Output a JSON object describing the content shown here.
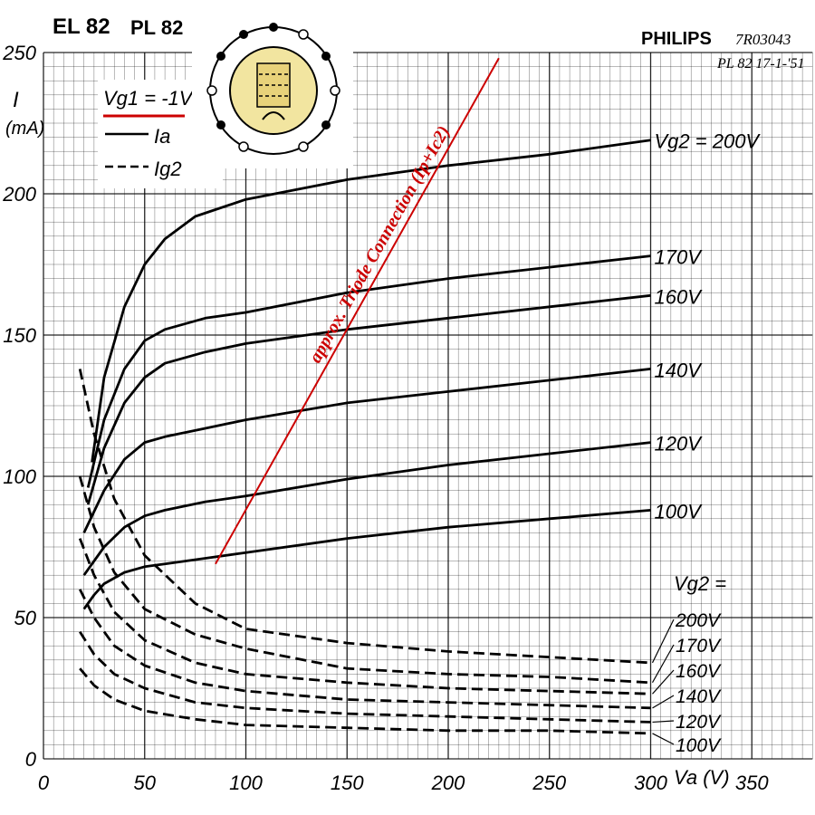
{
  "header": {
    "tube_title": "EL 82",
    "tube_title_2": "PL 82",
    "brand": "PHILIPS",
    "ref_code": "7R03043",
    "ref_note": "PL 82 17-1-'51"
  },
  "legend": {
    "grid_label": "Vg1 = -1V",
    "ia_label": "Ia",
    "ig2_label": "Ig2"
  },
  "triode_note": "approx. Triode Connection (Ip+Ic2)",
  "vg2_prefix": "Vg2 =",
  "chart_data": {
    "type": "line",
    "xlabel": "Va (V)",
    "ylabel": "I (mA)",
    "xlim": [
      0,
      380
    ],
    "ylim": [
      0,
      250
    ],
    "x_ticks": [
      0,
      50,
      100,
      150,
      200,
      250,
      300,
      350
    ],
    "y_ticks": [
      0,
      50,
      100,
      150,
      200,
      250
    ],
    "grid": true,
    "legend_placement": "top-left",
    "plate_series": [
      {
        "name": "200V",
        "label": "Vg2 = 200V",
        "style": "solid",
        "points": [
          [
            24,
            105
          ],
          [
            30,
            135
          ],
          [
            40,
            160
          ],
          [
            50,
            175
          ],
          [
            60,
            184
          ],
          [
            75,
            192
          ],
          [
            100,
            198
          ],
          [
            150,
            205
          ],
          [
            200,
            210
          ],
          [
            250,
            214
          ],
          [
            300,
            219
          ]
        ]
      },
      {
        "name": "170V",
        "label": "170V",
        "style": "solid",
        "points": [
          [
            22,
            96
          ],
          [
            30,
            120
          ],
          [
            40,
            138
          ],
          [
            50,
            148
          ],
          [
            60,
            152
          ],
          [
            80,
            156
          ],
          [
            100,
            158
          ],
          [
            150,
            165
          ],
          [
            200,
            170
          ],
          [
            250,
            174
          ],
          [
            300,
            178
          ]
        ]
      },
      {
        "name": "160V",
        "label": "160V",
        "style": "solid",
        "points": [
          [
            22,
            90
          ],
          [
            30,
            110
          ],
          [
            40,
            126
          ],
          [
            50,
            135
          ],
          [
            60,
            140
          ],
          [
            80,
            144
          ],
          [
            100,
            147
          ],
          [
            150,
            152
          ],
          [
            200,
            156
          ],
          [
            250,
            160
          ],
          [
            300,
            164
          ]
        ]
      },
      {
        "name": "140V",
        "label": "140V",
        "style": "solid",
        "points": [
          [
            20,
            80
          ],
          [
            30,
            95
          ],
          [
            40,
            106
          ],
          [
            50,
            112
          ],
          [
            60,
            114
          ],
          [
            80,
            117
          ],
          [
            100,
            120
          ],
          [
            150,
            126
          ],
          [
            200,
            130
          ],
          [
            250,
            134
          ],
          [
            300,
            138
          ]
        ]
      },
      {
        "name": "120V",
        "label": "120V",
        "style": "solid",
        "points": [
          [
            20,
            65
          ],
          [
            30,
            75
          ],
          [
            40,
            82
          ],
          [
            50,
            86
          ],
          [
            60,
            88
          ],
          [
            80,
            91
          ],
          [
            100,
            93
          ],
          [
            150,
            99
          ],
          [
            200,
            104
          ],
          [
            250,
            108
          ],
          [
            300,
            112
          ]
        ]
      },
      {
        "name": "100V",
        "label": "100V",
        "style": "solid",
        "points": [
          [
            20,
            53
          ],
          [
            25,
            58
          ],
          [
            30,
            62
          ],
          [
            40,
            66
          ],
          [
            50,
            68
          ],
          [
            60,
            69
          ],
          [
            80,
            71
          ],
          [
            100,
            73
          ],
          [
            150,
            78
          ],
          [
            200,
            82
          ],
          [
            250,
            85
          ],
          [
            300,
            88
          ]
        ]
      }
    ],
    "screen_series": [
      {
        "name": "200V",
        "label": "200V",
        "style": "dashed",
        "points": [
          [
            18,
            138
          ],
          [
            25,
            115
          ],
          [
            35,
            92
          ],
          [
            50,
            72
          ],
          [
            75,
            55
          ],
          [
            100,
            46
          ],
          [
            150,
            41
          ],
          [
            200,
            38
          ],
          [
            250,
            36
          ],
          [
            300,
            34
          ]
        ]
      },
      {
        "name": "170V",
        "label": "170V",
        "style": "dashed",
        "points": [
          [
            18,
            100
          ],
          [
            25,
            82
          ],
          [
            35,
            66
          ],
          [
            50,
            53
          ],
          [
            75,
            44
          ],
          [
            100,
            39
          ],
          [
            150,
            32
          ],
          [
            200,
            30
          ],
          [
            250,
            29
          ],
          [
            300,
            27
          ]
        ]
      },
      {
        "name": "160V",
        "label": "160V",
        "style": "dashed",
        "points": [
          [
            18,
            78
          ],
          [
            25,
            65
          ],
          [
            35,
            52
          ],
          [
            50,
            42
          ],
          [
            75,
            34
          ],
          [
            100,
            30
          ],
          [
            150,
            27
          ],
          [
            200,
            25
          ],
          [
            250,
            24
          ],
          [
            300,
            23
          ]
        ]
      },
      {
        "name": "140V",
        "label": "140V",
        "style": "dashed",
        "points": [
          [
            18,
            60
          ],
          [
            25,
            50
          ],
          [
            35,
            40
          ],
          [
            50,
            33
          ],
          [
            75,
            27
          ],
          [
            100,
            24
          ],
          [
            150,
            21
          ],
          [
            200,
            20
          ],
          [
            250,
            19
          ],
          [
            300,
            18
          ]
        ]
      },
      {
        "name": "120V",
        "label": "120V",
        "style": "dashed",
        "points": [
          [
            18,
            45
          ],
          [
            25,
            37
          ],
          [
            35,
            30
          ],
          [
            50,
            25
          ],
          [
            75,
            20
          ],
          [
            100,
            18
          ],
          [
            150,
            16
          ],
          [
            200,
            15
          ],
          [
            250,
            14
          ],
          [
            300,
            13
          ]
        ]
      },
      {
        "name": "100V",
        "label": "100V",
        "style": "dashed",
        "points": [
          [
            18,
            32
          ],
          [
            25,
            26
          ],
          [
            35,
            21
          ],
          [
            50,
            17
          ],
          [
            75,
            14
          ],
          [
            100,
            12
          ],
          [
            150,
            11
          ],
          [
            200,
            10
          ],
          [
            250,
            10
          ],
          [
            300,
            9
          ]
        ]
      }
    ],
    "triode_line": {
      "points": [
        [
          85,
          69
        ],
        [
          225,
          248
        ]
      ],
      "color": "#cc0000"
    },
    "colors": {
      "curve": "#000000",
      "grid_line": "#000000",
      "annotation": "#cc0000"
    }
  }
}
